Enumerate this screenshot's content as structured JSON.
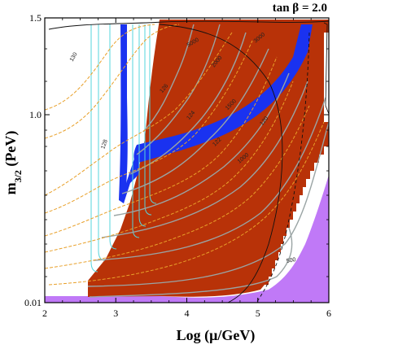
{
  "chart_data": {
    "type": "contour",
    "title": "tan β = 2.0",
    "xlabel": "Log (μ/GeV)",
    "ylabel": "m3/2 (PeV)",
    "ylabel_main": "m",
    "ylabel_sub": "3/2",
    "ylabel_tail": " (PeV)",
    "xlim": [
      2,
      6
    ],
    "x_ticks": [
      "2",
      "3",
      "4",
      "5",
      "6"
    ],
    "y_tick_values": [
      0.01,
      1.0,
      1.5
    ],
    "y_ticks": [
      "0.01",
      "1.0",
      "1.5"
    ],
    "regions": [
      {
        "name": "excluded-red",
        "color": "#b83208"
      },
      {
        "name": "excluded-purple",
        "color": "#c079f7"
      },
      {
        "name": "blue-band",
        "color": "#1a32f0"
      }
    ],
    "contour_colors": {
      "higgs_mass": "#e8a02a",
      "gray": "#9aa4a4",
      "cyan": "#55d4dc",
      "black": "#111111"
    },
    "contour_labels": [
      "130",
      "128",
      "126",
      "124",
      "122",
      "120",
      "1000",
      "1500",
      "2000",
      "3000",
      "5000",
      "500"
    ]
  }
}
